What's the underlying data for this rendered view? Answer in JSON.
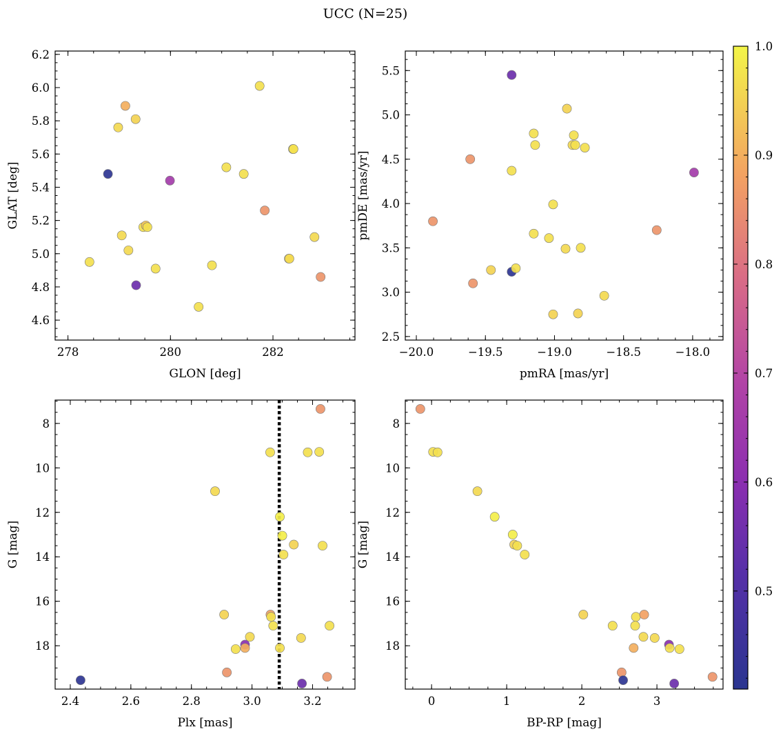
{
  "figure": {
    "title": "UCC (N=25)",
    "colorbar": {
      "min": 0.41,
      "max": 1.0,
      "ticks": [
        0.5,
        0.6,
        0.7,
        0.8,
        0.9,
        1.0
      ],
      "tick_labels": [
        "0.5",
        "0.6",
        "0.7",
        "0.8",
        "0.9",
        "1.0"
      ],
      "colormap": "plasma"
    }
  },
  "chart_data": [
    {
      "type": "scatter",
      "xlabel": "GLON [deg]",
      "ylabel": "GLAT [deg]",
      "xlim": [
        277.75,
        283.6
      ],
      "ylim": [
        4.48,
        6.22
      ],
      "xticks": [
        278,
        280,
        282
      ],
      "xtick_labels": [
        "278",
        "280",
        "282"
      ],
      "yticks": [
        4.6,
        4.8,
        5.0,
        5.2,
        5.4,
        5.6,
        5.8,
        6.0,
        6.2
      ],
      "ytick_labels": [
        "4.6",
        "4.8",
        "5.0",
        "5.2",
        "5.4",
        "5.6",
        "5.8",
        "6.0",
        "6.2"
      ],
      "points": [
        {
          "x": 278.42,
          "y": 4.95,
          "c": 0.97
        },
        {
          "x": 278.78,
          "y": 5.48,
          "c": 0.42
        },
        {
          "x": 278.98,
          "y": 5.76,
          "c": 0.96
        },
        {
          "x": 279.05,
          "y": 5.11,
          "c": 0.96
        },
        {
          "x": 279.12,
          "y": 5.89,
          "c": 0.9
        },
        {
          "x": 279.18,
          "y": 5.02,
          "c": 0.96
        },
        {
          "x": 279.32,
          "y": 5.81,
          "c": 0.95
        },
        {
          "x": 279.33,
          "y": 4.81,
          "c": 0.55
        },
        {
          "x": 279.47,
          "y": 5.16,
          "c": 0.97
        },
        {
          "x": 279.52,
          "y": 5.17,
          "c": 0.93
        },
        {
          "x": 279.55,
          "y": 5.16,
          "c": 0.97
        },
        {
          "x": 279.71,
          "y": 4.91,
          "c": 0.97
        },
        {
          "x": 279.99,
          "y": 5.44,
          "c": 0.66
        },
        {
          "x": 280.55,
          "y": 4.68,
          "c": 0.97
        },
        {
          "x": 280.81,
          "y": 4.93,
          "c": 0.97
        },
        {
          "x": 281.09,
          "y": 5.52,
          "c": 0.97
        },
        {
          "x": 281.43,
          "y": 5.48,
          "c": 0.97
        },
        {
          "x": 281.74,
          "y": 6.01,
          "c": 0.97
        },
        {
          "x": 281.84,
          "y": 5.26,
          "c": 0.86
        },
        {
          "x": 282.31,
          "y": 4.97,
          "c": 0.97
        },
        {
          "x": 282.32,
          "y": 4.97,
          "c": 0.96
        },
        {
          "x": 282.39,
          "y": 5.63,
          "c": 0.99
        },
        {
          "x": 282.4,
          "y": 5.63,
          "c": 0.97
        },
        {
          "x": 282.81,
          "y": 5.1,
          "c": 0.96
        },
        {
          "x": 282.93,
          "y": 4.86,
          "c": 0.86
        }
      ]
    },
    {
      "type": "scatter",
      "xlabel": "pmRA [mas/yr]",
      "ylabel": "pmDE [mas/yr]",
      "xlim": [
        -20.08,
        -17.78
      ],
      "ylim": [
        2.46,
        5.72
      ],
      "xticks": [
        -20.0,
        -19.5,
        -19.0,
        -18.5,
        -18.0
      ],
      "xtick_labels": [
        "−20.0",
        "−19.5",
        "−19.0",
        "−18.5",
        "−18.0"
      ],
      "yticks": [
        2.5,
        3.0,
        3.5,
        4.0,
        4.5,
        5.0,
        5.5
      ],
      "ytick_labels": [
        "2.5",
        "3.0",
        "3.5",
        "4.0",
        "4.5",
        "5.0",
        "5.5"
      ],
      "points": [
        {
          "x": -19.88,
          "y": 3.8,
          "c": 0.86
        },
        {
          "x": -19.61,
          "y": 4.5,
          "c": 0.86
        },
        {
          "x": -19.59,
          "y": 3.1,
          "c": 0.86
        },
        {
          "x": -19.46,
          "y": 3.25,
          "c": 0.95
        },
        {
          "x": -19.31,
          "y": 5.45,
          "c": 0.55
        },
        {
          "x": -19.31,
          "y": 4.37,
          "c": 0.97
        },
        {
          "x": -19.31,
          "y": 3.23,
          "c": 0.42
        },
        {
          "x": -19.28,
          "y": 3.27,
          "c": 0.97
        },
        {
          "x": -19.15,
          "y": 4.79,
          "c": 0.97
        },
        {
          "x": -19.14,
          "y": 4.66,
          "c": 0.97
        },
        {
          "x": -19.15,
          "y": 3.66,
          "c": 0.97
        },
        {
          "x": -19.04,
          "y": 3.61,
          "c": 0.97
        },
        {
          "x": -19.01,
          "y": 3.99,
          "c": 0.97
        },
        {
          "x": -19.01,
          "y": 2.75,
          "c": 0.95
        },
        {
          "x": -18.91,
          "y": 5.07,
          "c": 0.95
        },
        {
          "x": -18.92,
          "y": 3.49,
          "c": 0.96
        },
        {
          "x": -18.87,
          "y": 4.66,
          "c": 0.96
        },
        {
          "x": -18.86,
          "y": 4.77,
          "c": 0.97
        },
        {
          "x": -18.85,
          "y": 4.66,
          "c": 0.97
        },
        {
          "x": -18.83,
          "y": 2.76,
          "c": 0.95
        },
        {
          "x": -18.81,
          "y": 3.5,
          "c": 0.97
        },
        {
          "x": -18.78,
          "y": 4.63,
          "c": 0.97
        },
        {
          "x": -18.64,
          "y": 2.96,
          "c": 0.96
        },
        {
          "x": -18.26,
          "y": 3.7,
          "c": 0.86
        },
        {
          "x": -17.99,
          "y": 4.35,
          "c": 0.66
        }
      ]
    },
    {
      "type": "scatter",
      "xlabel": "Plx [mas]",
      "ylabel": "G [mag]",
      "xlim": [
        2.35,
        3.34
      ],
      "ylim": [
        19.95,
        6.95
      ],
      "xticks": [
        2.4,
        2.6,
        2.8,
        3.0,
        3.2
      ],
      "xtick_labels": [
        "2.4",
        "2.6",
        "2.8",
        "3.0",
        "3.2"
      ],
      "yticks": [
        8,
        10,
        12,
        14,
        16,
        18
      ],
      "ytick_labels": [
        "8",
        "10",
        "12",
        "14",
        "16",
        "18"
      ],
      "vline": 3.09,
      "points": [
        {
          "x": 3.226,
          "y": 7.35,
          "c": 0.86
        },
        {
          "x": 3.06,
          "y": 9.3,
          "c": 0.97
        },
        {
          "x": 3.184,
          "y": 9.3,
          "c": 0.97
        },
        {
          "x": 3.222,
          "y": 9.28,
          "c": 0.97
        },
        {
          "x": 2.878,
          "y": 11.05,
          "c": 0.96
        },
        {
          "x": 3.092,
          "y": 12.2,
          "c": 0.99
        },
        {
          "x": 3.1,
          "y": 13.05,
          "c": 0.99
        },
        {
          "x": 3.138,
          "y": 13.45,
          "c": 0.95
        },
        {
          "x": 3.233,
          "y": 13.5,
          "c": 0.97
        },
        {
          "x": 3.104,
          "y": 13.9,
          "c": 0.97
        },
        {
          "x": 2.908,
          "y": 16.6,
          "c": 0.95
        },
        {
          "x": 3.061,
          "y": 16.6,
          "c": 0.88
        },
        {
          "x": 3.063,
          "y": 16.7,
          "c": 0.97
        },
        {
          "x": 3.07,
          "y": 17.1,
          "c": 0.97
        },
        {
          "x": 3.256,
          "y": 17.1,
          "c": 0.97
        },
        {
          "x": 2.993,
          "y": 17.6,
          "c": 0.96
        },
        {
          "x": 3.162,
          "y": 17.65,
          "c": 0.96
        },
        {
          "x": 2.977,
          "y": 17.95,
          "c": 0.6
        },
        {
          "x": 2.977,
          "y": 18.1,
          "c": 0.9
        },
        {
          "x": 2.946,
          "y": 18.15,
          "c": 0.97
        },
        {
          "x": 3.092,
          "y": 18.1,
          "c": 0.97
        },
        {
          "x": 2.917,
          "y": 19.2,
          "c": 0.86
        },
        {
          "x": 3.248,
          "y": 19.4,
          "c": 0.86
        },
        {
          "x": 2.434,
          "y": 19.55,
          "c": 0.42
        },
        {
          "x": 3.165,
          "y": 19.7,
          "c": 0.55
        }
      ]
    },
    {
      "type": "scatter",
      "xlabel": "BP-RP [mag]",
      "ylabel": "G [mag]",
      "xlim": [
        -0.35,
        3.88
      ],
      "ylim": [
        19.95,
        6.95
      ],
      "xticks": [
        0,
        1,
        2,
        3
      ],
      "xtick_labels": [
        "0",
        "1",
        "2",
        "3"
      ],
      "yticks": [
        8,
        10,
        12,
        14,
        16,
        18
      ],
      "ytick_labels": [
        "8",
        "10",
        "12",
        "14",
        "16",
        "18"
      ],
      "points": [
        {
          "x": -0.15,
          "y": 7.35,
          "c": 0.86
        },
        {
          "x": 0.02,
          "y": 9.28,
          "c": 0.97
        },
        {
          "x": 0.08,
          "y": 9.3,
          "c": 0.97
        },
        {
          "x": 0.61,
          "y": 11.05,
          "c": 0.96
        },
        {
          "x": 0.84,
          "y": 12.2,
          "c": 0.99
        },
        {
          "x": 1.08,
          "y": 13.0,
          "c": 0.99
        },
        {
          "x": 1.1,
          "y": 13.45,
          "c": 0.95
        },
        {
          "x": 1.14,
          "y": 13.5,
          "c": 0.97
        },
        {
          "x": 1.24,
          "y": 13.9,
          "c": 0.97
        },
        {
          "x": 2.02,
          "y": 16.6,
          "c": 0.95
        },
        {
          "x": 2.41,
          "y": 17.1,
          "c": 0.97
        },
        {
          "x": 2.72,
          "y": 16.7,
          "c": 0.97
        },
        {
          "x": 2.71,
          "y": 17.1,
          "c": 0.97
        },
        {
          "x": 2.83,
          "y": 16.6,
          "c": 0.88
        },
        {
          "x": 2.82,
          "y": 17.6,
          "c": 0.96
        },
        {
          "x": 2.97,
          "y": 17.65,
          "c": 0.96
        },
        {
          "x": 2.69,
          "y": 18.1,
          "c": 0.9
        },
        {
          "x": 3.16,
          "y": 17.95,
          "c": 0.6
        },
        {
          "x": 3.17,
          "y": 18.1,
          "c": 0.97
        },
        {
          "x": 3.3,
          "y": 18.15,
          "c": 0.97
        },
        {
          "x": 2.53,
          "y": 19.2,
          "c": 0.86
        },
        {
          "x": 2.55,
          "y": 19.55,
          "c": 0.42
        },
        {
          "x": 3.23,
          "y": 19.7,
          "c": 0.55
        },
        {
          "x": 3.74,
          "y": 19.4,
          "c": 0.86
        }
      ]
    }
  ]
}
